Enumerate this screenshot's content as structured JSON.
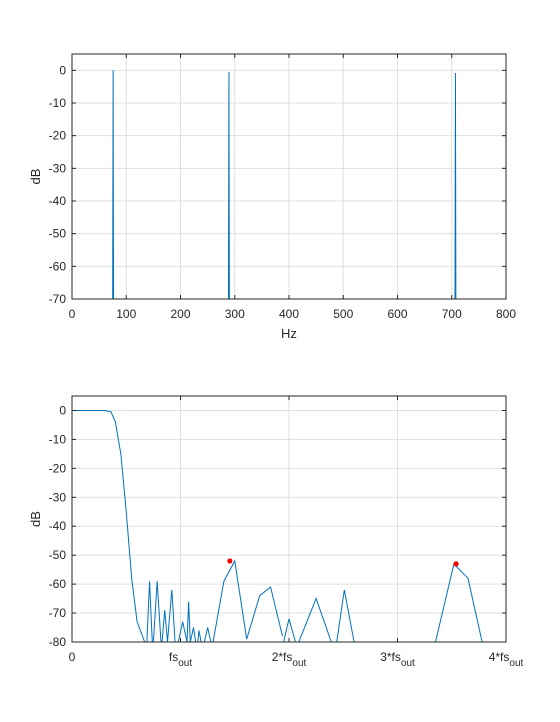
{
  "chart_data": [
    {
      "type": "line",
      "title": "",
      "xlabel": "Hz",
      "ylabel": "dB",
      "xlim": [
        0,
        800
      ],
      "ylim": [
        -70,
        5
      ],
      "grid": true,
      "x_ticks": [
        "0",
        "100",
        "200",
        "300",
        "400",
        "500",
        "600",
        "700",
        "800"
      ],
      "x_tick_values": [
        0,
        100,
        200,
        300,
        400,
        500,
        600,
        700,
        800
      ],
      "y_ticks": [
        "0",
        "-10",
        "-20",
        "-30",
        "-40",
        "-50",
        "-60",
        "-70"
      ],
      "y_tick_values": [
        0,
        -10,
        -20,
        -30,
        -40,
        -50,
        -60,
        -70
      ],
      "line_color": "#0072bd",
      "series": [
        {
          "x": [
            75,
            75.8,
            76.6
          ],
          "y": [
            -70,
            0,
            -70
          ]
        },
        {
          "x": [
            288.5,
            289.3,
            290.1
          ],
          "y": [
            -70,
            -0.5,
            -70
          ]
        },
        {
          "x": [
            706,
            706.8,
            707.6
          ],
          "y": [
            -70,
            -0.8,
            -70
          ]
        }
      ]
    },
    {
      "type": "line",
      "title": "",
      "xlabel": "",
      "ylabel": "dB",
      "xlim": [
        0,
        4
      ],
      "ylim": [
        -80,
        5
      ],
      "grid": true,
      "x_ticks": [
        {
          "main": "0",
          "sub": ""
        },
        {
          "main": "fs",
          "sub": "out"
        },
        {
          "main": "2*fs",
          "sub": "out"
        },
        {
          "main": "3*fs",
          "sub": "out"
        },
        {
          "main": "4*fs",
          "sub": "out"
        }
      ],
      "x_tick_values": [
        0,
        1,
        2,
        3,
        4
      ],
      "y_ticks": [
        "0",
        "-10",
        "-20",
        "-30",
        "-40",
        "-50",
        "-60",
        "-70",
        "-80"
      ],
      "y_tick_values": [
        0,
        -10,
        -20,
        -30,
        -40,
        -50,
        -60,
        -70,
        -80
      ],
      "line_color": "#0072bd",
      "marker_color": "#ff0000",
      "series": [
        {
          "x": [
            0,
            0.3,
            0.36,
            0.4,
            0.45,
            0.5,
            0.55,
            0.6,
            0.65,
            0.67
          ],
          "y": [
            0,
            0,
            -0.5,
            -4,
            -15,
            -35,
            -58,
            -73,
            -78,
            -80
          ]
        },
        {
          "x": [
            0.69,
            0.715,
            0.74
          ],
          "y": [
            -80,
            -59,
            -80
          ]
        },
        {
          "x": [
            0.75,
            0.785,
            0.82
          ],
          "y": [
            -80,
            -59,
            -80
          ]
        },
        {
          "x": [
            0.83,
            0.855,
            0.88
          ],
          "y": [
            -80,
            -69,
            -80
          ]
        },
        {
          "x": [
            0.88,
            0.92,
            0.95
          ],
          "y": [
            -80,
            -62,
            -80
          ]
        },
        {
          "x": [
            0.98,
            1.02,
            1.06
          ],
          "y": [
            -80,
            -73,
            -80
          ]
        },
        {
          "x": [
            1.06,
            1.075,
            1.09
          ],
          "y": [
            -80,
            -66,
            -80
          ]
        },
        {
          "x": [
            1.09,
            1.12,
            1.14
          ],
          "y": [
            -80,
            -75,
            -80
          ]
        },
        {
          "x": [
            1.16,
            1.17,
            1.19
          ],
          "y": [
            -80,
            -76,
            -80
          ]
        },
        {
          "x": [
            1.22,
            1.25,
            1.28
          ],
          "y": [
            -80,
            -75,
            -80
          ]
        },
        {
          "x": [
            1.3,
            1.4,
            1.5,
            1.61
          ],
          "y": [
            -80,
            -59,
            -52,
            -79
          ]
        },
        {
          "x": [
            1.61,
            1.73,
            1.83,
            1.94
          ],
          "y": [
            -79,
            -64,
            -61,
            -78
          ]
        },
        {
          "x": [
            1.95,
            2,
            2.06
          ],
          "y": [
            -80,
            -72,
            -80
          ]
        },
        {
          "x": [
            2.09,
            2.25,
            2.39
          ],
          "y": [
            -80,
            -65,
            -80
          ]
        },
        {
          "x": [
            2.44,
            2.51,
            2.6
          ],
          "y": [
            -80,
            -62,
            -80
          ]
        },
        {
          "x": [
            3.35,
            3.52,
            3.65,
            3.78
          ],
          "y": [
            -80,
            -53,
            -58,
            -80
          ]
        }
      ],
      "markers": [
        {
          "x": 1.455,
          "y": -52
        },
        {
          "x": 3.54,
          "y": -53
        }
      ]
    }
  ]
}
